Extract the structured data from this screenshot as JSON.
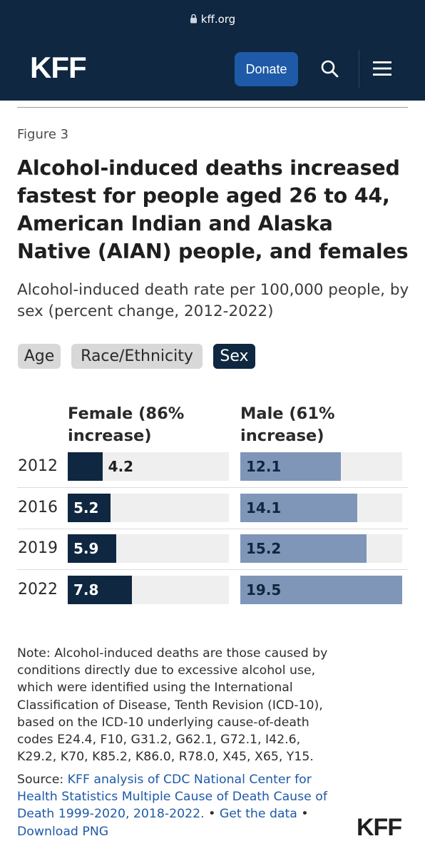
{
  "browser": {
    "url": "kff.org",
    "lock_icon": "lock-icon"
  },
  "header": {
    "logo": "KFF",
    "donate_label": "Donate",
    "search_icon": "search-icon",
    "menu_icon": "hamburger-menu-icon",
    "background": "#0f2740",
    "button_color": "#1e5aa8"
  },
  "figure": {
    "label": "Figure 3",
    "title": "Alcohol-induced deaths increased fastest for people aged 26 to 44, American Indian and Alaska Native (AIAN) people, and females",
    "subtitle": "Alcohol-induced death rate per 100,000 people, by sex (percent change, 2012-2022)",
    "tabs": [
      {
        "label": "Age",
        "active": false
      },
      {
        "label": "Race/Ethnicity",
        "active": false
      },
      {
        "label": "Sex",
        "active": true
      }
    ]
  },
  "chart_data": {
    "type": "bar",
    "orientation": "horizontal",
    "categories": [
      "2012",
      "2016",
      "2019",
      "2022"
    ],
    "series": [
      {
        "name": "Female (86% increase)",
        "values": [
          4.2,
          5.2,
          5.9,
          7.8
        ],
        "color": "#0f2740"
      },
      {
        "name": "Male (61% increase)",
        "values": [
          12.1,
          14.1,
          15.2,
          19.5
        ],
        "color": "#7f96b8"
      }
    ],
    "xlim": [
      0,
      19.5
    ]
  },
  "note": "Note: Alcohol-induced deaths are those caused by conditions directly due to excessive alcohol use, which were identified using the International Classification of Disease, Tenth Revision (ICD-10), based on the ICD-10 underlying cause-of-death codes E24.4, F10, G31.2, G62.1, G72.1, I42.6, K29.2, K70, K85.2, K86.0, R78.0, X45, X65, Y15.",
  "source": {
    "prefix": "Source: ",
    "link": "KFF analysis of CDC National Center for Health Statistics Multiple Cause of Death Cause of Death 1999-2020, 2018-2022.",
    "sep1": " • ",
    "get_data": "Get the data",
    "sep2": " • ",
    "download": "Download PNG"
  },
  "footer": {
    "logo": "KFF"
  }
}
